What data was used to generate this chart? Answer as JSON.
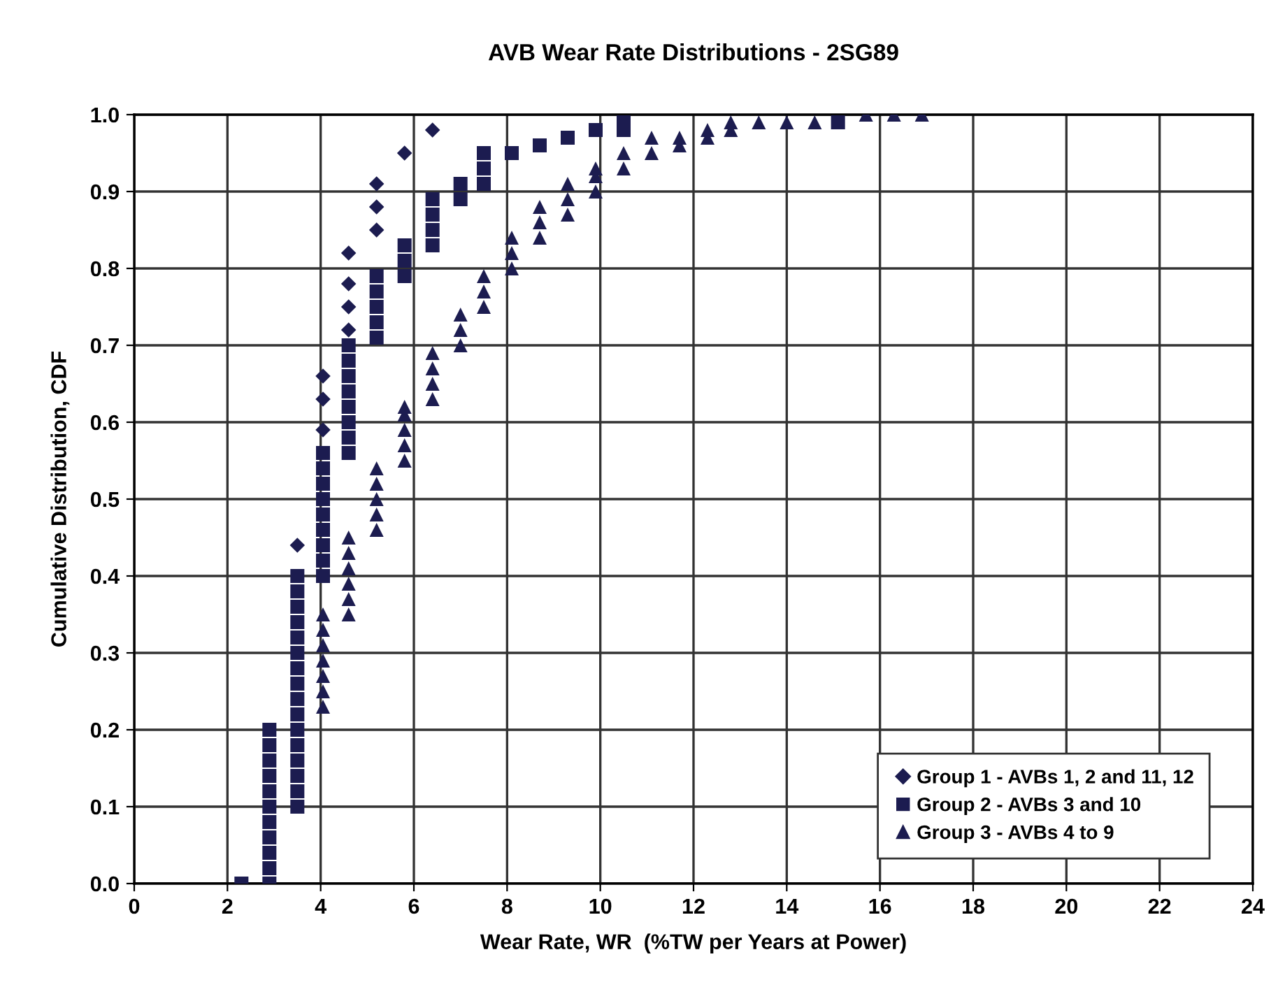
{
  "chart_data": {
    "type": "scatter",
    "title": "AVB Wear Rate Distributions - 2SG89",
    "xlabel": "Wear Rate, WR  (%TW per Years at Power)",
    "ylabel": "Cumulative Distribution, CDF",
    "xlim": [
      0,
      24
    ],
    "xticks": [
      0,
      2,
      4,
      6,
      8,
      10,
      12,
      14,
      16,
      18,
      20,
      22,
      24
    ],
    "ylim": [
      0,
      1
    ],
    "yticks": [
      {
        "value": 0,
        "label": "0.0"
      },
      {
        "value": 0.1,
        "label": "0.1"
      },
      {
        "value": 0.2,
        "label": "0.2"
      },
      {
        "value": 0.3,
        "label": "0.3"
      },
      {
        "value": 0.4,
        "label": "0.4"
      },
      {
        "value": 0.5,
        "label": "0.5"
      },
      {
        "value": 0.6,
        "label": "0.6"
      },
      {
        "value": 0.7,
        "label": "0.7"
      },
      {
        "value": 0.8,
        "label": "0.8"
      },
      {
        "value": 0.9,
        "label": "0.9"
      },
      {
        "value": 1,
        "label": "1.0"
      }
    ],
    "grid": true,
    "legend": "bottom right",
    "series": [
      {
        "name": "Group 1 - AVBs 1, 2 and 11, 12",
        "color": "#1c1c50",
        "marker": "diamond",
        "x": [
          3.5,
          4.05,
          4.05,
          4.05,
          4.6,
          4.6,
          4.6,
          4.6,
          5.2,
          5.2,
          5.2,
          5.8,
          6.4
        ],
        "values": [
          0.44,
          0.59,
          0.63,
          0.66,
          0.72,
          0.75,
          0.78,
          0.82,
          0.85,
          0.88,
          0.91,
          0.95,
          0.98
        ]
      },
      {
        "name": "Group 2 - AVBs 3 and 10",
        "color": "#1c1c50",
        "marker": "square",
        "x": [
          2.3,
          2.9,
          2.9,
          2.9,
          2.9,
          2.9,
          2.9,
          2.9,
          2.9,
          2.9,
          2.9,
          2.9,
          3.5,
          3.5,
          3.5,
          3.5,
          3.5,
          3.5,
          3.5,
          3.5,
          3.5,
          3.5,
          3.5,
          3.5,
          3.5,
          3.5,
          3.5,
          3.5,
          4.05,
          4.05,
          4.05,
          4.05,
          4.05,
          4.05,
          4.05,
          4.05,
          4.05,
          4.6,
          4.6,
          4.6,
          4.6,
          4.6,
          4.6,
          4.6,
          4.6,
          5.2,
          5.2,
          5.2,
          5.2,
          5.2,
          5.8,
          5.8,
          5.8,
          6.4,
          6.4,
          6.4,
          6.4,
          7.0,
          7.0,
          7.5,
          7.5,
          7.5,
          8.1,
          8.7,
          9.3,
          9.9,
          10.5,
          10.5,
          15.1
        ],
        "values": [
          0.0,
          0.0,
          0.02,
          0.04,
          0.06,
          0.08,
          0.1,
          0.12,
          0.14,
          0.16,
          0.18,
          0.2,
          0.1,
          0.12,
          0.14,
          0.16,
          0.18,
          0.2,
          0.22,
          0.24,
          0.26,
          0.28,
          0.3,
          0.32,
          0.34,
          0.36,
          0.38,
          0.4,
          0.4,
          0.42,
          0.44,
          0.46,
          0.48,
          0.5,
          0.52,
          0.54,
          0.56,
          0.56,
          0.58,
          0.6,
          0.62,
          0.64,
          0.66,
          0.68,
          0.7,
          0.71,
          0.73,
          0.75,
          0.77,
          0.79,
          0.79,
          0.81,
          0.83,
          0.83,
          0.85,
          0.87,
          0.89,
          0.89,
          0.91,
          0.91,
          0.93,
          0.95,
          0.95,
          0.96,
          0.97,
          0.98,
          0.98,
          0.99,
          0.99
        ]
      },
      {
        "name": "Group 3 - AVBs 4 to 9",
        "color": "#1c1c50",
        "marker": "triangle",
        "x": [
          4.05,
          4.05,
          4.05,
          4.05,
          4.05,
          4.05,
          4.05,
          4.6,
          4.6,
          4.6,
          4.6,
          4.6,
          4.6,
          5.2,
          5.2,
          5.2,
          5.2,
          5.2,
          5.8,
          5.8,
          5.8,
          5.8,
          5.8,
          6.4,
          6.4,
          6.4,
          6.4,
          7.0,
          7.0,
          7.0,
          7.5,
          7.5,
          7.5,
          8.1,
          8.1,
          8.1,
          8.7,
          8.7,
          8.7,
          9.3,
          9.3,
          9.3,
          9.9,
          9.9,
          9.9,
          10.5,
          10.5,
          11.1,
          11.1,
          11.7,
          11.7,
          12.3,
          12.3,
          12.8,
          12.8,
          13.4,
          14.0,
          14.6,
          15.7,
          16.3,
          16.9
        ],
        "values": [
          0.23,
          0.25,
          0.27,
          0.29,
          0.31,
          0.33,
          0.35,
          0.35,
          0.37,
          0.39,
          0.41,
          0.43,
          0.45,
          0.46,
          0.48,
          0.5,
          0.52,
          0.54,
          0.55,
          0.57,
          0.59,
          0.61,
          0.62,
          0.63,
          0.65,
          0.67,
          0.69,
          0.7,
          0.72,
          0.74,
          0.75,
          0.77,
          0.79,
          0.8,
          0.82,
          0.84,
          0.84,
          0.86,
          0.88,
          0.87,
          0.89,
          0.91,
          0.9,
          0.92,
          0.93,
          0.93,
          0.95,
          0.95,
          0.97,
          0.96,
          0.97,
          0.97,
          0.98,
          0.98,
          0.99,
          0.99,
          0.99,
          0.99,
          1.0,
          1.0,
          1.0
        ]
      }
    ]
  }
}
